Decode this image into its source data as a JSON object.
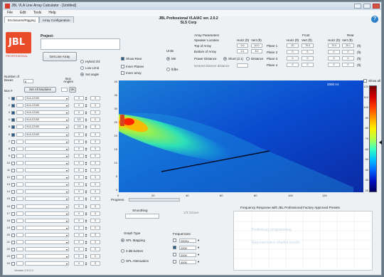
{
  "window": {
    "title": "JBL VLA Line Array Calculator - [Untitled]",
    "menu": [
      "File",
      "Edit",
      "Tools",
      "Help"
    ]
  },
  "tabs": [
    {
      "label": "Enclosures/Rigging",
      "active": true
    },
    {
      "label": "Array Configuration",
      "active": false
    }
  ],
  "app_title_line1": "JBL Professional VLA/AC ver. 2.0.2",
  "app_title_line2": "SLS Corp",
  "logo": {
    "text": "JBL",
    "subtitle": "PROFESSIONAL"
  },
  "project": {
    "label": "Project:",
    "value": ""
  },
  "buttons": {
    "get_from_array": "Get Line Array",
    "set_all_modules": "Set All Modules",
    "apply": "OK"
  },
  "rig_options": [
    {
      "label": "Hybrid 2/3",
      "selected": false
    },
    {
      "label": "Low Limit",
      "selected": false
    },
    {
      "label": "Set angle",
      "selected": true
    }
  ],
  "view_options": [
    {
      "label": "Show Rear",
      "checked": true
    },
    {
      "label": "Inner Planes",
      "checked": false
    },
    {
      "label": "Inner array",
      "checked": false
    }
  ],
  "units": {
    "label": "Units",
    "options": [
      {
        "label": "Mtr",
        "selected": true
      },
      {
        "label": "ft/lbs",
        "selected": false
      }
    ]
  },
  "number_of_boxes": {
    "label": "Number of Boxes",
    "value": "6"
  },
  "box_angle_header": "Box Angles",
  "box_header": "Box #",
  "module_rows": [
    {
      "n": "1",
      "on": true,
      "model": "VLA-C2100",
      "angle": "0",
      "val": "0"
    },
    {
      "n": "2",
      "on": true,
      "model": "VLA-C2100",
      "angle": "0",
      "val": "0"
    },
    {
      "n": "3",
      "on": true,
      "model": "VLA-C2100",
      "angle": "0",
      "val": "0"
    },
    {
      "n": "4",
      "on": true,
      "model": "VLA-C2100",
      "angle": "3.5",
      "val": "0"
    },
    {
      "n": "5",
      "on": true,
      "model": "VLA-C2100",
      "angle": "2.5",
      "val": "0"
    },
    {
      "n": "6",
      "on": true,
      "model": "VLA-C2100",
      "angle": "3",
      "val": "0"
    },
    {
      "n": "7",
      "on": false,
      "model": "",
      "angle": "0",
      "val": "0"
    },
    {
      "n": "8",
      "on": false,
      "model": "",
      "angle": "0",
      "val": "0"
    },
    {
      "n": "9",
      "on": false,
      "model": "",
      "angle": "0",
      "val": "0"
    },
    {
      "n": "10",
      "on": false,
      "model": "",
      "angle": "0",
      "val": "0"
    },
    {
      "n": "11",
      "on": false,
      "model": "",
      "angle": "0",
      "val": "0"
    },
    {
      "n": "12",
      "on": false,
      "model": "",
      "angle": "0",
      "val": "0"
    },
    {
      "n": "13",
      "on": false,
      "model": "",
      "angle": "0",
      "val": "0"
    },
    {
      "n": "14",
      "on": false,
      "model": "",
      "angle": "0",
      "val": "0"
    },
    {
      "n": "15",
      "on": false,
      "model": "",
      "angle": "0",
      "val": "0"
    },
    {
      "n": "16",
      "on": false,
      "model": "",
      "angle": "0",
      "val": "0"
    },
    {
      "n": "17",
      "on": false,
      "model": "",
      "angle": "0",
      "val": "0"
    },
    {
      "n": "18",
      "on": false,
      "model": "",
      "angle": "0",
      "val": "0"
    },
    {
      "n": "19",
      "on": false,
      "model": "",
      "angle": "0",
      "val": "0"
    },
    {
      "n": "20",
      "on": false,
      "model": "",
      "angle": "0",
      "val": "0"
    },
    {
      "n": "21",
      "on": false,
      "model": "",
      "angle": "0",
      "val": "0"
    },
    {
      "n": "22",
      "on": false,
      "model": "",
      "angle": "0",
      "val": "0"
    },
    {
      "n": "23",
      "on": false,
      "model": "",
      "angle": "0",
      "val": "0"
    },
    {
      "n": "24",
      "on": false,
      "model": "",
      "angle": "0",
      "val": "0"
    }
  ],
  "array_params": {
    "title": "Array Parameters",
    "speaker_location_label": "Speaker Location",
    "col_headers": [
      "Horiz (ft)",
      "Vert (ft)"
    ],
    "top_of_array": {
      "label": "Top of Array",
      "h": "0.0",
      "v": "10.0"
    },
    "bottom_of_array": {
      "label": "Bottom of Array",
      "h": "0.1",
      "v": "8.2"
    },
    "power_distance_label": "Power Distance",
    "power_distance_opts": [
      "Short (2:1)",
      "Distance"
    ],
    "dist_note": "Nearest listener distance"
  },
  "planes": {
    "front_label": "Front",
    "rear_label": "Rear",
    "col_headers": [
      "Horiz (ft)",
      "Vert (ft)",
      "Horiz (ft)",
      "Vert (ft)"
    ],
    "rows": [
      {
        "label": "Plane 1",
        "v": [
          "20",
          "70.0",
          "70.0",
          "20.1"
        ],
        "unit": "(ft)"
      },
      {
        "label": "Plane 2",
        "v": [
          "0",
          "0",
          "0",
          "0"
        ],
        "unit": "(ft)"
      },
      {
        "label": "Plane 3",
        "v": [
          "0",
          "0",
          "0",
          "0"
        ],
        "unit": "(ft)"
      },
      {
        "label": "Plane 4",
        "v": [
          "0",
          "0",
          "0",
          "0"
        ],
        "unit": "(ft)"
      }
    ]
  },
  "plot": {
    "freq": "2000 Hz",
    "x_ticks": [
      "0",
      "20",
      "40",
      "60",
      "80",
      "100",
      "120"
    ],
    "y_ticks": [
      "40",
      "35",
      "30",
      "25",
      "20",
      "15",
      "10",
      "5",
      "0"
    ],
    "show_all_label": "Show all",
    "colorbar_ticks": [
      "120",
      "110",
      "100",
      "90",
      "80",
      "70",
      "60",
      "50",
      "40",
      "30",
      "20"
    ]
  },
  "progress_label": "Progress:",
  "smoothing_label": "Smoothing",
  "smoothing_value": "1/3 Octave",
  "graph_type": {
    "label": "Graph Type",
    "options": [
      {
        "label": "SPL Mapping",
        "selected": true
      },
      {
        "label": "3 dB bottom",
        "selected": false
      },
      {
        "label": "SPL Attenuation",
        "selected": false
      }
    ]
  },
  "frequencies": {
    "label": "Frequencies",
    "items": [
      {
        "v": "250Hz",
        "on": false
      },
      {
        "v": "2000",
        "on": true
      },
      {
        "v": "2000",
        "on": false
      },
      {
        "v": "4000",
        "on": false
      }
    ]
  },
  "freq_chart": {
    "title": "Frequency Response with JBL Professional Factory Approved Presets",
    "watermark1": "Preliminary programming",
    "watermark2": "Representative shaded results"
  },
  "version": "Version 2.0.2.0",
  "colors": {
    "accent": "#e94b2b",
    "help": "#2a7fc8"
  }
}
